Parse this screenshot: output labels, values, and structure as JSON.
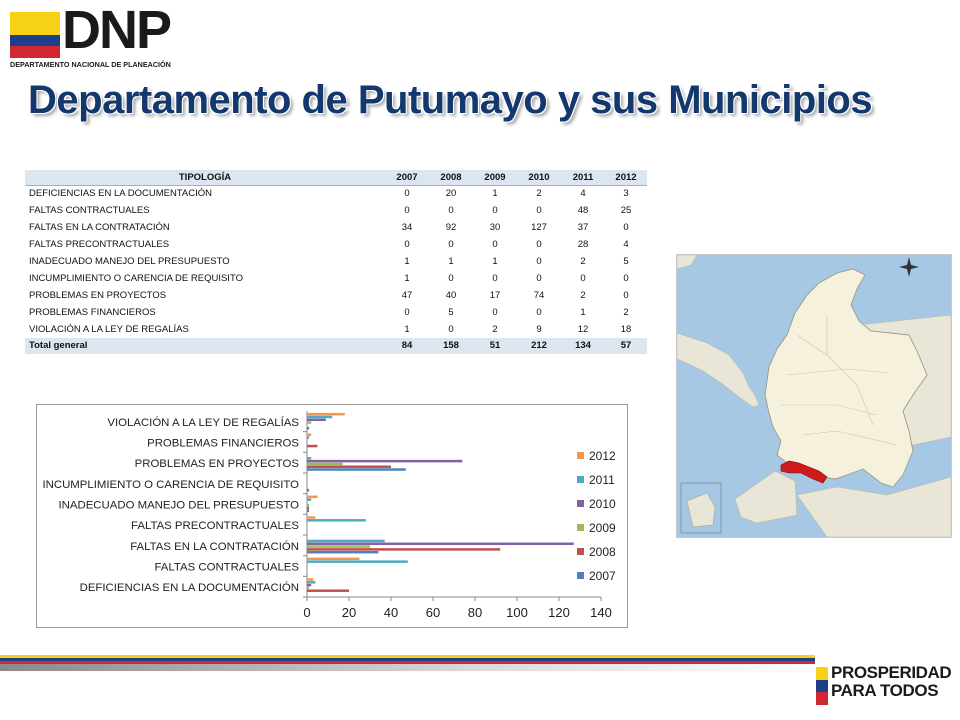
{
  "logo": {
    "name": "DNP",
    "subtitle": "DEPARTAMENTO NACIONAL DE PLANEACIÓN"
  },
  "title": "Departamento de Putumayo y sus Municipios",
  "table": {
    "headers": [
      "TIPOLOGÍA",
      "2007",
      "2008",
      "2009",
      "2010",
      "2011",
      "2012"
    ],
    "rows": [
      [
        "DEFICIENCIAS  EN LA DOCUMENTACIÓN",
        "0",
        "20",
        "1",
        "2",
        "4",
        "3"
      ],
      [
        "FALTAS CONTRACTUALES",
        "0",
        "0",
        "0",
        "0",
        "48",
        "25"
      ],
      [
        "FALTAS EN LA CONTRATACIÓN",
        "34",
        "92",
        "30",
        "127",
        "37",
        "0"
      ],
      [
        "FALTAS PRECONTRACTUALES",
        "0",
        "0",
        "0",
        "0",
        "28",
        "4"
      ],
      [
        "INADECUADO  MANEJO DEL PRESUPUESTO",
        "1",
        "1",
        "1",
        "0",
        "2",
        "5"
      ],
      [
        "INCUMPLIMIENTO  O CARENCIA DE REQUISITO",
        "1",
        "0",
        "0",
        "0",
        "0",
        "0"
      ],
      [
        "PROBLEMAS EN  PROYECTOS",
        "47",
        "40",
        "17",
        "74",
        "2",
        "0"
      ],
      [
        "PROBLEMAS FINANCIEROS",
        "0",
        "5",
        "0",
        "0",
        "1",
        "2"
      ],
      [
        "VIOLACIÓN  A LA LEY DE REGALÍAS",
        "1",
        "0",
        "2",
        "9",
        "12",
        "18"
      ]
    ],
    "total": [
      "Total general",
      "84",
      "158",
      "51",
      "212",
      "134",
      "57"
    ]
  },
  "chart_data": {
    "type": "bar",
    "orientation": "horizontal",
    "categories": [
      "DEFICIENCIAS EN LA DOCUMENTACIÓN",
      "FALTAS CONTRACTUALES",
      "FALTAS EN LA CONTRATACIÓN",
      "FALTAS PRECONTRACTUALES",
      "INADECUADO MANEJO DEL PRESUPUESTO",
      "INCUMPLIMIENTO O CARENCIA DE REQUISITO",
      "PROBLEMAS EN PROYECTOS",
      "PROBLEMAS FINANCIEROS",
      "VIOLACIÓN A LA LEY DE REGALÍAS"
    ],
    "series": [
      {
        "name": "2007",
        "color": "#4f81bd",
        "values": [
          0,
          0,
          34,
          0,
          1,
          1,
          47,
          0,
          1
        ]
      },
      {
        "name": "2008",
        "color": "#c0504d",
        "values": [
          20,
          0,
          92,
          0,
          1,
          0,
          40,
          5,
          0
        ]
      },
      {
        "name": "2009",
        "color": "#9bbb59",
        "values": [
          1,
          0,
          30,
          0,
          1,
          0,
          17,
          0,
          2
        ]
      },
      {
        "name": "2010",
        "color": "#8064a2",
        "values": [
          2,
          0,
          127,
          0,
          0,
          0,
          74,
          0,
          9
        ]
      },
      {
        "name": "2011",
        "color": "#4bacc6",
        "values": [
          4,
          48,
          37,
          28,
          2,
          0,
          2,
          1,
          12
        ]
      },
      {
        "name": "2012",
        "color": "#f79646",
        "values": [
          3,
          25,
          0,
          4,
          5,
          0,
          0,
          2,
          18
        ]
      }
    ],
    "xlim": [
      0,
      140
    ],
    "xticks": [
      "0",
      "20",
      "40",
      "60",
      "80",
      "100",
      "120",
      "140"
    ],
    "legend": "right",
    "grid": false
  },
  "footer": {
    "line1": "PROSPERIDAD",
    "line2": "PARA TODOS"
  },
  "colors": {
    "flag_yellow": "#F7D117",
    "flag_blue": "#1B3F8B",
    "flag_red": "#D22630",
    "title": "#13386e",
    "putumayo": "#d01a1a"
  }
}
